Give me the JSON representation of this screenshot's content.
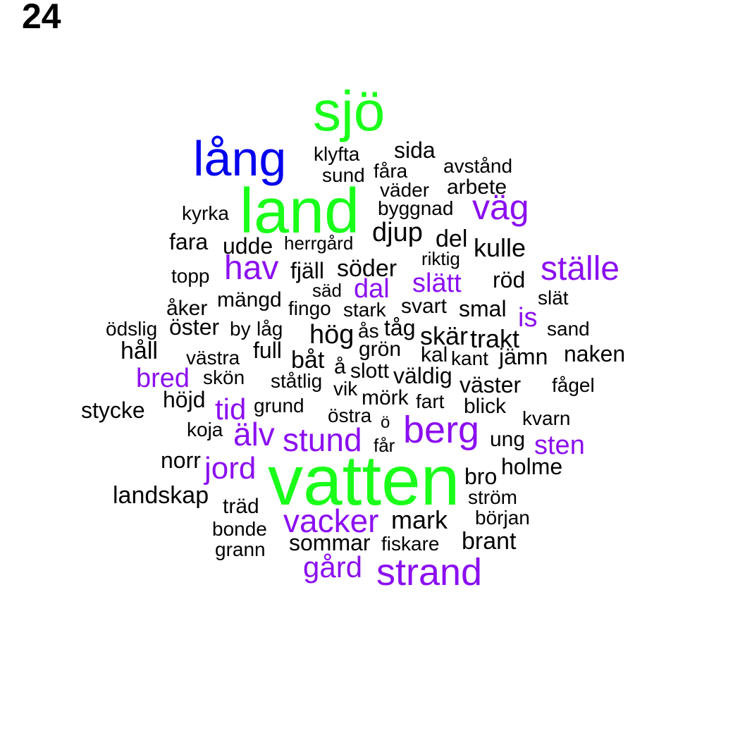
{
  "figure_number": "24",
  "colors": {
    "black": "#000000",
    "purple": "#8b0ff0",
    "green": "#1aff1a",
    "blue": "#0000ee"
  },
  "words": {
    "sjo": "sjö",
    "lang": "lång",
    "land": "land",
    "vatten": "vatten",
    "strand": "strand",
    "berg": "berg",
    "vag": "väg",
    "stalle": "ställe",
    "hav": "hav",
    "slatt": "slätt",
    "dal": "dal",
    "is": "is",
    "bred": "bred",
    "tid": "tid",
    "alv": "älv",
    "stund": "stund",
    "sten": "sten",
    "jord": "jord",
    "vacker": "vacker",
    "gard": "gård",
    "klyfta": "klyfta",
    "sida": "sida",
    "sund": "sund",
    "fara_furrow": "fåra",
    "avstand": "avstånd",
    "vader": "väder",
    "arbete": "arbete",
    "kyrka": "kyrka",
    "byggnad": "byggnad",
    "fara": "fara",
    "udde": "udde",
    "herrgard": "herrgård",
    "djup": "djup",
    "del": "del",
    "kulle": "kulle",
    "riktig": "riktig",
    "topp": "topp",
    "fjall": "fjäll",
    "soder": "söder",
    "rod": "röd",
    "sad": "säd",
    "slat": "slät",
    "mangd": "mängd",
    "aker": "åker",
    "fingo": "fingo",
    "stark": "stark",
    "svart": "svart",
    "smal": "smal",
    "odslig": "ödslig",
    "oster": "öster",
    "by": "by",
    "lag": "låg",
    "hog": "hög",
    "as": "ås",
    "tag": "tåg",
    "skar": "skär",
    "trakt": "trakt",
    "sand": "sand",
    "hall": "håll",
    "full": "full",
    "gron": "grön",
    "vastra": "västra",
    "bat": "båt",
    "kal": "kal",
    "kant": "kant",
    "jamn": "jämn",
    "naken": "naken",
    "a": "å",
    "slott": "slott",
    "skon": "skön",
    "statlig": "ståtlig",
    "valdig": "väldig",
    "vik": "vik",
    "vaster": "väster",
    "fagel": "fågel",
    "hojd": "höjd",
    "mork": "mörk",
    "fart": "fart",
    "stycke": "stycke",
    "grund": "grund",
    "blick": "blick",
    "ostra": "östra",
    "o": "ö",
    "kvarn": "kvarn",
    "koja": "koja",
    "far": "får",
    "ung": "ung",
    "norr": "norr",
    "holme": "holme",
    "bro": "bro",
    "landskap": "landskap",
    "strom": "ström",
    "trad": "träd",
    "mark": "mark",
    "borjan": "början",
    "bonde": "bonde",
    "sommar": "sommar",
    "fiskare": "fiskare",
    "brant": "brant",
    "grann": "grann"
  }
}
